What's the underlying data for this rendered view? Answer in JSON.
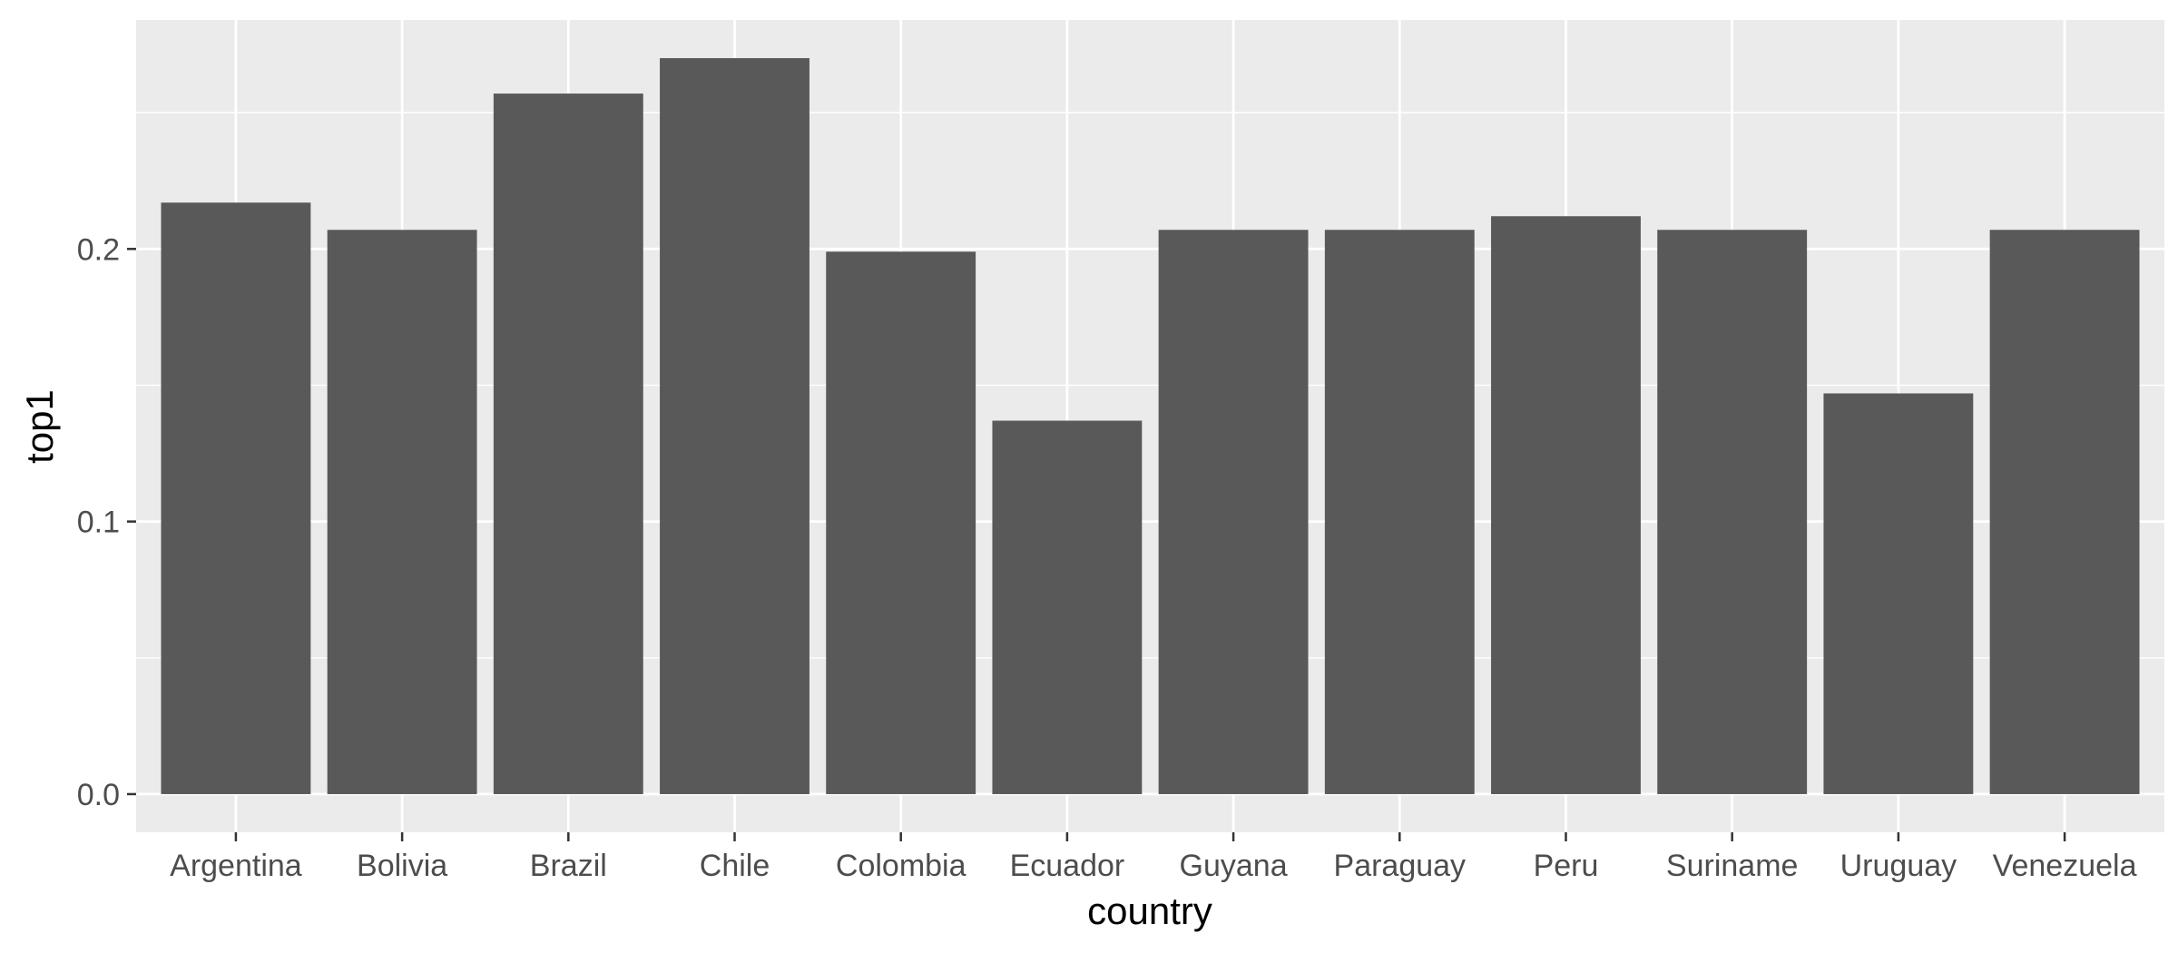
{
  "chart_data": {
    "type": "bar",
    "title": "",
    "xlabel": "country",
    "ylabel": "top1",
    "categories": [
      "Argentina",
      "Bolivia",
      "Brazil",
      "Chile",
      "Colombia",
      "Ecuador",
      "Guyana",
      "Paraguay",
      "Peru",
      "Suriname",
      "Uruguay",
      "Venezuela"
    ],
    "values": [
      0.217,
      0.207,
      0.257,
      0.27,
      0.199,
      0.137,
      0.207,
      0.207,
      0.212,
      0.207,
      0.147,
      0.207
    ],
    "ylim": [
      -0.014,
      0.284
    ],
    "yticks": [
      0.0,
      0.1,
      0.2
    ],
    "ytick_labels": [
      "0.0",
      "0.1",
      "0.2"
    ],
    "grid": true,
    "legend": "none",
    "colors": {
      "panel": "#ebebeb",
      "grid": "#ffffff",
      "bar": "#595959",
      "tick": "#333333"
    }
  }
}
